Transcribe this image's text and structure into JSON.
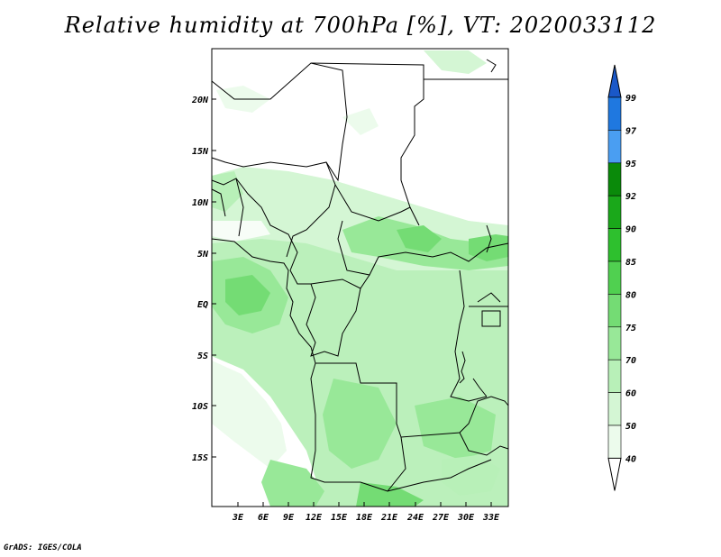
{
  "title": "Relative humidity at 700hPa [%], VT: 2020033112",
  "credit": "GrADS: IGES/COLA",
  "map": {
    "lat_labels": [
      "20N",
      "15N",
      "10N",
      "5N",
      "EQ",
      "5S",
      "10S",
      "15S"
    ],
    "lon_labels": [
      "3E",
      "6E",
      "9E",
      "12E",
      "15E",
      "18E",
      "21E",
      "24E",
      "27E",
      "30E",
      "33E"
    ]
  },
  "colorbar": {
    "labels": [
      "99",
      "97",
      "95",
      "92",
      "90",
      "85",
      "80",
      "75",
      "70",
      "60",
      "50",
      "40"
    ],
    "colors": [
      "#1a58c8",
      "#1f78e0",
      "#4a9ef2",
      "#0a8a0a",
      "#1aa81a",
      "#2ec02e",
      "#50d050",
      "#74dc74",
      "#98e898",
      "#b8f0b8",
      "#d4f6d4",
      "#ecfbec"
    ]
  }
}
